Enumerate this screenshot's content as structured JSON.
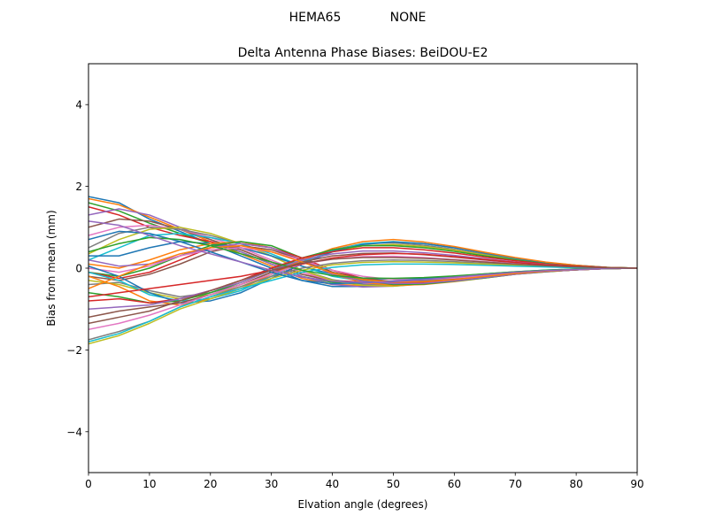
{
  "chart_data": {
    "type": "line",
    "suptitle_left": "HEMA65",
    "suptitle_right": "NONE",
    "title": "Delta Antenna Phase Biases: BeiDOU-E2",
    "xlabel": "Elvation angle (degrees)",
    "ylabel": "Bias from mean (mm)",
    "xlim": [
      0,
      90
    ],
    "ylim": [
      -5,
      5
    ],
    "xticks": [
      0,
      10,
      20,
      30,
      40,
      50,
      60,
      70,
      80,
      90
    ],
    "yticks": [
      -4,
      -2,
      0,
      2,
      4
    ],
    "ytick_labels": [
      "−4",
      "−2",
      "0",
      "2",
      "4"
    ],
    "grid": false,
    "x": [
      0,
      5,
      10,
      15,
      20,
      25,
      30,
      35,
      40,
      45,
      50,
      55,
      60,
      65,
      70,
      75,
      80,
      85,
      90
    ],
    "colors": [
      "#1f77b4",
      "#ff7f0e",
      "#2ca02c",
      "#d62728",
      "#9467bd",
      "#8c564b",
      "#e377c2",
      "#7f7f7f",
      "#bcbd22",
      "#17becf"
    ],
    "series": [
      {
        "values": [
          1.75,
          1.6,
          1.2,
          0.9,
          0.6,
          0.3,
          0.0,
          -0.3,
          -0.45,
          -0.45,
          -0.4,
          -0.35,
          -0.28,
          -0.2,
          -0.14,
          -0.08,
          -0.04,
          -0.01,
          0.0
        ]
      },
      {
        "values": [
          1.7,
          1.55,
          1.25,
          0.95,
          0.65,
          0.35,
          0.05,
          -0.25,
          -0.4,
          -0.42,
          -0.4,
          -0.34,
          -0.27,
          -0.2,
          -0.13,
          -0.08,
          -0.04,
          -0.01,
          0.0
        ]
      },
      {
        "values": [
          1.6,
          1.4,
          1.1,
          0.85,
          0.6,
          0.4,
          0.1,
          -0.2,
          -0.35,
          -0.38,
          -0.36,
          -0.3,
          -0.24,
          -0.17,
          -0.11,
          -0.07,
          -0.03,
          -0.01,
          0.0
        ]
      },
      {
        "values": [
          1.5,
          1.3,
          1.0,
          0.8,
          0.65,
          0.45,
          0.15,
          -0.15,
          -0.3,
          -0.34,
          -0.32,
          -0.27,
          -0.21,
          -0.15,
          -0.1,
          -0.06,
          -0.03,
          -0.01,
          0.0
        ]
      },
      {
        "values": [
          1.3,
          1.45,
          1.3,
          1.0,
          0.7,
          0.4,
          0.1,
          -0.2,
          -0.4,
          -0.46,
          -0.44,
          -0.38,
          -0.3,
          -0.22,
          -0.14,
          -0.08,
          -0.04,
          -0.01,
          0.0
        ]
      },
      {
        "values": [
          1.0,
          1.2,
          1.15,
          0.95,
          0.7,
          0.45,
          0.15,
          -0.15,
          -0.32,
          -0.36,
          -0.35,
          -0.3,
          -0.24,
          -0.17,
          -0.11,
          -0.06,
          -0.03,
          -0.01,
          0.0
        ]
      },
      {
        "values": [
          0.8,
          1.0,
          1.05,
          0.95,
          0.75,
          0.5,
          0.2,
          -0.1,
          -0.3,
          -0.38,
          -0.38,
          -0.33,
          -0.26,
          -0.19,
          -0.12,
          -0.07,
          -0.03,
          -0.01,
          0.0
        ]
      },
      {
        "values": [
          0.5,
          0.85,
          1.0,
          0.95,
          0.8,
          0.6,
          0.3,
          -0.05,
          -0.28,
          -0.4,
          -0.42,
          -0.37,
          -0.3,
          -0.22,
          -0.14,
          -0.08,
          -0.04,
          -0.01,
          0.0
        ]
      },
      {
        "values": [
          0.35,
          0.7,
          0.95,
          1.0,
          0.85,
          0.6,
          0.3,
          -0.05,
          -0.3,
          -0.42,
          -0.44,
          -0.39,
          -0.31,
          -0.22,
          -0.14,
          -0.08,
          -0.04,
          -0.01,
          0.0
        ]
      },
      {
        "values": [
          0.2,
          0.5,
          0.8,
          0.85,
          0.75,
          0.6,
          0.35,
          0.05,
          -0.2,
          -0.32,
          -0.35,
          -0.31,
          -0.25,
          -0.18,
          -0.11,
          -0.06,
          -0.03,
          -0.01,
          0.0
        ]
      },
      {
        "values": [
          0.3,
          0.3,
          0.5,
          0.65,
          0.6,
          0.5,
          0.3,
          0.05,
          -0.15,
          -0.25,
          -0.27,
          -0.25,
          -0.2,
          -0.14,
          -0.09,
          -0.05,
          -0.02,
          -0.01,
          0.0
        ]
      },
      {
        "values": [
          0.1,
          0.0,
          0.2,
          0.45,
          0.6,
          0.65,
          0.5,
          0.2,
          -0.15,
          -0.35,
          -0.42,
          -0.4,
          -0.33,
          -0.24,
          -0.15,
          -0.09,
          -0.04,
          -0.01,
          0.0
        ]
      },
      {
        "values": [
          -0.1,
          -0.2,
          0.0,
          0.3,
          0.55,
          0.65,
          0.55,
          0.25,
          -0.1,
          -0.3,
          -0.4,
          -0.39,
          -0.32,
          -0.24,
          -0.15,
          -0.09,
          -0.04,
          -0.01,
          0.0
        ]
      },
      {
        "values": [
          -0.1,
          -0.25,
          -0.1,
          0.2,
          0.5,
          0.6,
          0.5,
          0.25,
          -0.05,
          -0.25,
          -0.35,
          -0.35,
          -0.3,
          -0.22,
          -0.14,
          -0.08,
          -0.04,
          -0.01,
          0.0
        ]
      },
      {
        "values": [
          0.2,
          0.05,
          0.1,
          0.3,
          0.5,
          0.6,
          0.5,
          0.2,
          -0.15,
          -0.32,
          -0.38,
          -0.37,
          -0.31,
          -0.23,
          -0.15,
          -0.08,
          -0.04,
          -0.01,
          0.0
        ]
      },
      {
        "values": [
          -0.2,
          -0.3,
          -0.15,
          0.1,
          0.4,
          0.55,
          0.45,
          0.2,
          -0.1,
          -0.25,
          -0.33,
          -0.32,
          -0.27,
          -0.2,
          -0.13,
          -0.07,
          -0.03,
          -0.01,
          0.0
        ]
      },
      {
        "values": [
          0.0,
          -0.1,
          0.05,
          0.3,
          0.45,
          0.5,
          0.4,
          0.2,
          -0.05,
          -0.2,
          -0.28,
          -0.28,
          -0.24,
          -0.18,
          -0.12,
          -0.07,
          -0.03,
          -0.01,
          0.0
        ]
      },
      {
        "values": [
          -0.4,
          -0.35,
          -0.55,
          -0.7,
          -0.6,
          -0.4,
          -0.1,
          0.2,
          0.45,
          0.6,
          0.62,
          0.56,
          0.46,
          0.34,
          0.22,
          0.13,
          0.06,
          0.02,
          0.0
        ]
      },
      {
        "values": [
          -0.3,
          -0.4,
          -0.6,
          -0.75,
          -0.65,
          -0.45,
          -0.15,
          0.15,
          0.4,
          0.55,
          0.58,
          0.53,
          0.44,
          0.32,
          0.21,
          0.12,
          0.06,
          0.02,
          0.0
        ]
      },
      {
        "values": [
          -0.1,
          -0.3,
          -0.65,
          -0.8,
          -0.75,
          -0.55,
          -0.2,
          0.15,
          0.42,
          0.6,
          0.65,
          0.6,
          0.5,
          0.37,
          0.24,
          0.14,
          0.07,
          0.02,
          0.0
        ]
      },
      {
        "values": [
          0.05,
          -0.2,
          -0.6,
          -0.85,
          -0.8,
          -0.6,
          -0.25,
          0.1,
          0.4,
          0.58,
          0.64,
          0.6,
          0.5,
          0.37,
          0.24,
          0.14,
          0.07,
          0.02,
          0.0
        ]
      },
      {
        "values": [
          -0.2,
          -0.45,
          -0.8,
          -0.9,
          -0.75,
          -0.5,
          -0.15,
          0.2,
          0.48,
          0.65,
          0.7,
          0.64,
          0.53,
          0.39,
          0.26,
          0.15,
          0.07,
          0.02,
          0.0
        ]
      },
      {
        "values": [
          -0.6,
          -0.7,
          -0.85,
          -0.8,
          -0.6,
          -0.35,
          -0.05,
          0.25,
          0.45,
          0.55,
          0.55,
          0.5,
          0.41,
          0.3,
          0.2,
          0.11,
          0.05,
          0.02,
          0.0
        ]
      },
      {
        "values": [
          -0.8,
          -0.75,
          -0.85,
          -0.75,
          -0.55,
          -0.3,
          0.0,
          0.25,
          0.4,
          0.5,
          0.5,
          0.45,
          0.37,
          0.27,
          0.18,
          0.1,
          0.05,
          0.02,
          0.0
        ]
      },
      {
        "values": [
          -1.0,
          -0.95,
          -0.9,
          -0.75,
          -0.55,
          -0.35,
          -0.05,
          0.2,
          0.35,
          0.42,
          0.42,
          0.38,
          0.31,
          0.23,
          0.15,
          0.09,
          0.04,
          0.01,
          0.0
        ]
      },
      {
        "values": [
          -1.2,
          -1.05,
          -0.95,
          -0.85,
          -0.65,
          -0.4,
          -0.1,
          0.15,
          0.3,
          0.36,
          0.37,
          0.33,
          0.27,
          0.2,
          0.13,
          0.08,
          0.04,
          0.01,
          0.0
        ]
      },
      {
        "values": [
          -1.5,
          -1.35,
          -1.15,
          -0.9,
          -0.65,
          -0.4,
          -0.15,
          0.1,
          0.22,
          0.28,
          0.29,
          0.26,
          0.21,
          0.16,
          0.11,
          0.06,
          0.03,
          0.01,
          0.0
        ]
      },
      {
        "values": [
          -1.75,
          -1.55,
          -1.3,
          -0.95,
          -0.7,
          -0.45,
          -0.2,
          0.0,
          0.12,
          0.18,
          0.2,
          0.19,
          0.16,
          0.12,
          0.08,
          0.05,
          0.02,
          0.01,
          0.0
        ]
      },
      {
        "values": [
          -1.85,
          -1.65,
          -1.35,
          -1.0,
          -0.75,
          -0.5,
          -0.25,
          -0.05,
          0.08,
          0.14,
          0.16,
          0.15,
          0.13,
          0.1,
          0.07,
          0.04,
          0.02,
          0.01,
          0.0
        ]
      },
      {
        "values": [
          -1.8,
          -1.6,
          -1.3,
          -0.95,
          -0.7,
          -0.5,
          -0.3,
          -0.1,
          0.02,
          0.08,
          0.1,
          0.1,
          0.09,
          0.07,
          0.05,
          0.03,
          0.01,
          0.0,
          0.0
        ]
      },
      {
        "values": [
          0.7,
          0.9,
          0.85,
          0.65,
          0.4,
          0.15,
          -0.1,
          -0.3,
          -0.38,
          -0.36,
          -0.32,
          -0.27,
          -0.21,
          -0.15,
          -0.1,
          -0.06,
          -0.03,
          -0.01,
          0.0
        ]
      },
      {
        "values": [
          -0.5,
          -0.2,
          0.1,
          0.35,
          0.5,
          0.55,
          0.4,
          0.15,
          -0.12,
          -0.28,
          -0.34,
          -0.33,
          -0.28,
          -0.2,
          -0.13,
          -0.07,
          -0.03,
          -0.01,
          0.0
        ]
      },
      {
        "values": [
          0.4,
          0.6,
          0.75,
          0.7,
          0.55,
          0.35,
          0.15,
          -0.05,
          -0.18,
          -0.24,
          -0.25,
          -0.23,
          -0.19,
          -0.14,
          -0.09,
          -0.05,
          -0.02,
          -0.01,
          0.0
        ]
      },
      {
        "values": [
          -0.7,
          -0.6,
          -0.5,
          -0.4,
          -0.3,
          -0.2,
          -0.05,
          0.1,
          0.25,
          0.33,
          0.36,
          0.34,
          0.28,
          0.21,
          0.14,
          0.08,
          0.04,
          0.01,
          0.0
        ]
      },
      {
        "values": [
          1.15,
          1.05,
          0.8,
          0.55,
          0.35,
          0.15,
          -0.05,
          -0.22,
          -0.32,
          -0.35,
          -0.33,
          -0.28,
          -0.22,
          -0.16,
          -0.1,
          -0.06,
          -0.03,
          -0.01,
          0.0
        ]
      },
      {
        "values": [
          -1.35,
          -1.2,
          -1.05,
          -0.8,
          -0.55,
          -0.3,
          -0.05,
          0.12,
          0.22,
          0.26,
          0.26,
          0.24,
          0.2,
          0.15,
          0.1,
          0.06,
          0.03,
          0.01,
          0.0
        ]
      }
    ]
  }
}
